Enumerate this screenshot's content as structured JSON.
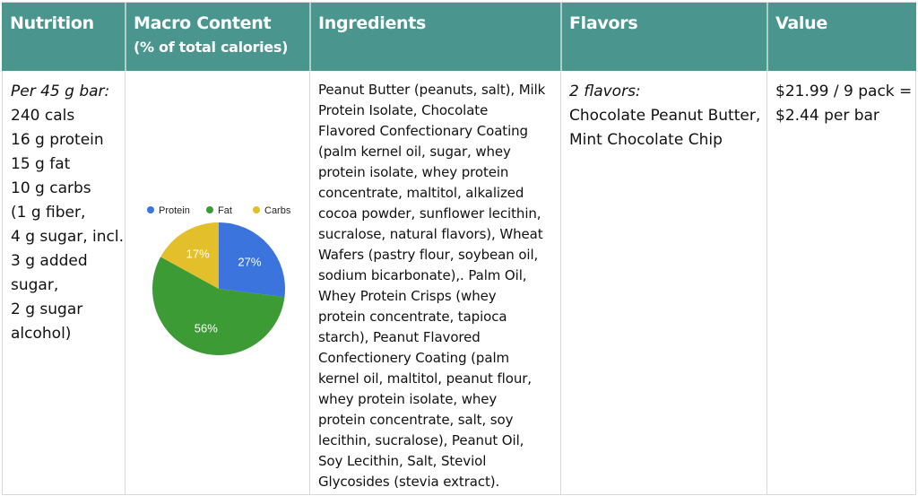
{
  "headers": {
    "nutrition": "Nutrition",
    "macro_main": "Macro Content",
    "macro_sub": "(% of total calories)",
    "ingredients": "Ingredients",
    "flavors": "Flavors",
    "value": "Value"
  },
  "nutrition": {
    "lines": [
      "Per 45 g bar:",
      "240 cals",
      "16 g protein",
      "15 g fat",
      "10 g carbs",
      "(1 g fiber,",
      "4 g sugar, incl.",
      "3 g added",
      "sugar,",
      "2 g sugar",
      "alcohol)"
    ]
  },
  "ingredients": {
    "text": "Peanut Butter (peanuts, salt), Milk\nProtein Isolate, Chocolate\nFlavored Confectionary Coating\n(palm kernel oil, sugar, whey\nprotein isolate, whey protein\nconcentrate, maltitol, alkalized\ncocoa powder, sunflower lecithin,\nsucralose, natural flavors), Wheat\nWafers (pastry flour, soybean oil,\nsodium bicarbonate),. Palm Oil,\nWhey Protein Crisps (whey\nprotein concentrate, tapioca\nstarch), Peanut Flavored\nConfectionery Coating (palm\nkernel oil, maltitol, peanut flour,\nwhey protein isolate, whey\nprotein concentrate, salt, soy\nlecithin, sucralose), Peanut Oil,\nSoy Lecithin, Salt, Steviol\nGlycosides (stevia extract)."
  },
  "flavors": {
    "count_label": "2 flavors:",
    "line1": "Chocolate Peanut Butter,",
    "line2": "Mint Chocolate Chip"
  },
  "value": {
    "line1": "$21.99 / 9 pack =",
    "line2": "$2.44 per bar"
  },
  "colors": {
    "header_bg": "#4b958f",
    "protein": "#3b74dc",
    "fat": "#3d9b35",
    "carbs": "#e2bf2b"
  },
  "chart_data": {
    "type": "pie",
    "categories": [
      "Protein",
      "Fat",
      "Carbs"
    ],
    "values": [
      27,
      56,
      17
    ],
    "labels": [
      "27%",
      "56%",
      "17%"
    ],
    "legend_position": "top"
  }
}
